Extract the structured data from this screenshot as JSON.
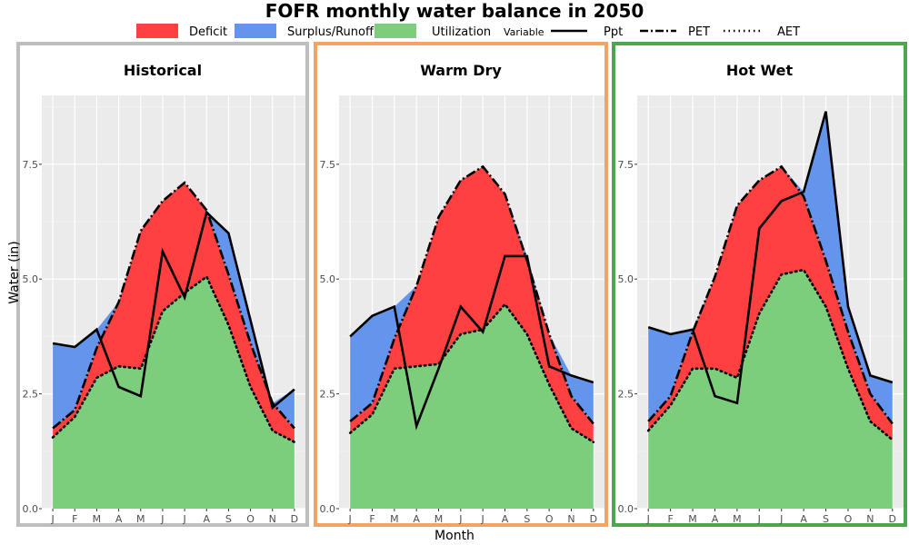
{
  "chart_data": {
    "type": "area",
    "title": "FOFR monthly water balance in 2050",
    "xlabel": "Month",
    "ylabel": "Water (in)",
    "ylim": [
      0,
      9
    ],
    "yticks": [
      0,
      2.5,
      5,
      7.5
    ],
    "ytick_labels": [
      "0.0",
      "2.5",
      "5.0",
      "7.5"
    ],
    "categories": [
      "J",
      "F",
      "M",
      "A",
      "M",
      "J",
      "J",
      "A",
      "S",
      "O",
      "N",
      "D"
    ],
    "legend": {
      "fill_items": [
        {
          "label": "Deficit",
          "color": "#FF4040"
        },
        {
          "label": "Surplus/Runoff",
          "color": "#6495ED"
        },
        {
          "label": "Utilization",
          "color": "#7CCD7C"
        }
      ],
      "variable_title": "Variable",
      "line_items": [
        {
          "label": "Ppt",
          "style": "solid"
        },
        {
          "label": "PET",
          "style": "dashdot"
        },
        {
          "label": "AET",
          "style": "dotted"
        }
      ]
    },
    "panels": [
      {
        "name": "Historical",
        "border_color": "#BEBEBE",
        "series": [
          {
            "name": "Ppt",
            "values": [
              3.6,
              3.52,
              3.9,
              2.65,
              2.45,
              5.6,
              4.6,
              6.45,
              6.0,
              4.1,
              2.2,
              2.6
            ]
          },
          {
            "name": "PET",
            "values": [
              1.75,
              2.15,
              3.5,
              4.5,
              6.05,
              6.7,
              7.1,
              6.5,
              5.1,
              3.6,
              2.3,
              1.75
            ]
          },
          {
            "name": "AET",
            "values": [
              1.55,
              2.0,
              2.85,
              3.1,
              3.05,
              4.3,
              4.7,
              5.05,
              4.0,
              2.65,
              1.7,
              1.45
            ]
          }
        ]
      },
      {
        "name": "Warm Dry",
        "border_color": "#F4A460",
        "series": [
          {
            "name": "Ppt",
            "values": [
              3.75,
              4.2,
              4.4,
              1.8,
              3.05,
              4.4,
              3.85,
              5.5,
              5.5,
              3.1,
              2.9,
              2.75
            ]
          },
          {
            "name": "PET",
            "values": [
              1.9,
              2.3,
              3.7,
              4.85,
              6.35,
              7.15,
              7.45,
              6.85,
              5.4,
              3.8,
              2.45,
              1.85
            ]
          },
          {
            "name": "AET",
            "values": [
              1.65,
              2.05,
              3.05,
              3.1,
              3.15,
              3.8,
              3.9,
              4.45,
              3.8,
              2.7,
              1.75,
              1.45
            ]
          }
        ]
      },
      {
        "name": "Hot Wet",
        "border_color": "#4CA64C",
        "series": [
          {
            "name": "Ppt",
            "values": [
              3.95,
              3.8,
              3.9,
              2.45,
              2.3,
              6.1,
              6.7,
              6.9,
              8.65,
              4.4,
              2.9,
              2.75
            ]
          },
          {
            "name": "PET",
            "values": [
              1.9,
              2.45,
              3.85,
              5.05,
              6.6,
              7.15,
              7.45,
              6.8,
              5.4,
              3.85,
              2.5,
              1.85
            ]
          },
          {
            "name": "AET",
            "values": [
              1.7,
              2.25,
              3.05,
              3.05,
              2.85,
              4.25,
              5.1,
              5.2,
              4.4,
              3.05,
              1.9,
              1.5
            ]
          }
        ]
      }
    ],
    "colors": {
      "deficit": "#FF4040",
      "surplus": "#6495ED",
      "utilization": "#7CCD7C",
      "plot_bg": "#EBEBEB",
      "grid": "#FFFFFF"
    }
  }
}
